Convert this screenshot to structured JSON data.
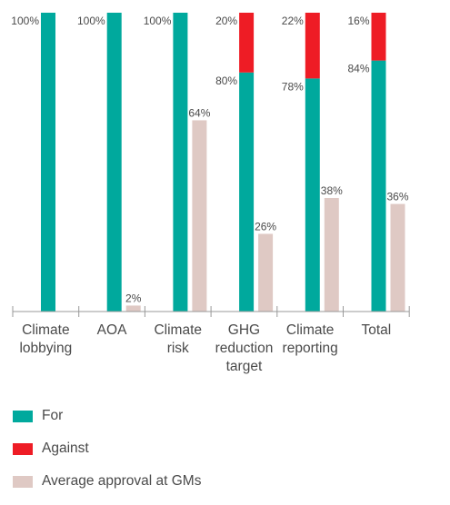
{
  "chart_data": {
    "type": "bar",
    "categories": [
      [
        "Climate",
        "lobbying"
      ],
      [
        "AOA"
      ],
      [
        "Climate",
        "risk"
      ],
      [
        "GHG",
        "reduction",
        "target"
      ],
      [
        "Climate",
        "reporting"
      ],
      [
        "Total"
      ]
    ],
    "ylim": [
      0,
      100
    ],
    "grid": false,
    "legend_position": "bottom-left",
    "series": [
      {
        "name": "For",
        "stack": "vote",
        "color": "#00a99d",
        "values": [
          100,
          100,
          100,
          80,
          78,
          84
        ],
        "labels": [
          "100%",
          "100%",
          "100%",
          "80%",
          "78%",
          "84%"
        ]
      },
      {
        "name": "Against",
        "stack": "vote",
        "color": "#ee1c25",
        "values": [
          0,
          0,
          0,
          20,
          22,
          16
        ],
        "labels": [
          "",
          "",
          "",
          "20%",
          "22%",
          "16%"
        ]
      },
      {
        "name": "Average approval at GMs",
        "stack": "avg",
        "color": "#dfc9c4",
        "values": [
          null,
          2,
          64,
          26,
          38,
          36
        ],
        "labels": [
          "",
          "2%",
          "64%",
          "26%",
          "38%",
          "36%"
        ]
      }
    ],
    "axis_color": "#999999"
  }
}
